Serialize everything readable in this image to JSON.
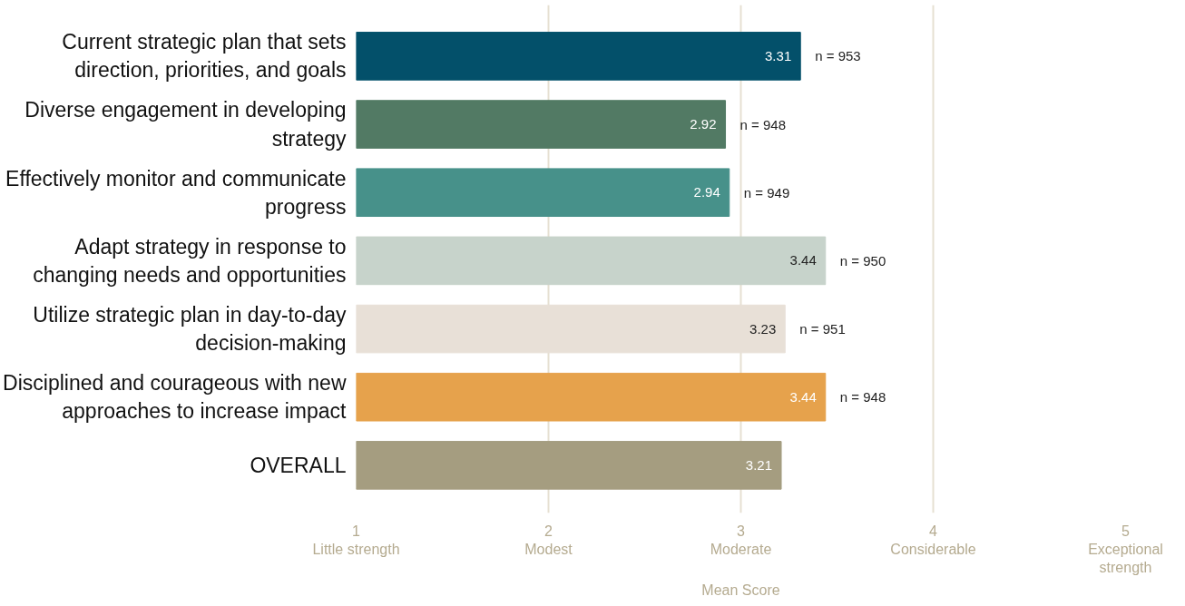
{
  "chart_data": {
    "type": "bar",
    "orientation": "horizontal",
    "xlabel": "Mean Score",
    "categories": [
      "Current strategic plan that sets direction, priorities, and goals",
      "Diverse engagement in developing strategy",
      "Effectively monitor and communicate progress",
      "Adapt strategy in response to changing needs and opportunities",
      "Utilize strategic plan in day-to-day decision-making",
      "Disciplined and courageous with new approaches to increase impact",
      "OVERALL"
    ],
    "values": [
      3.31,
      2.92,
      2.94,
      3.44,
      3.23,
      3.44,
      3.21
    ],
    "colors": [
      "#03506a",
      "#527a64",
      "#47918a",
      "#c7d3cb",
      "#e8e0d7",
      "#e6a24c",
      "#a59d80"
    ],
    "data_labels": true,
    "xlim": [
      1,
      5
    ],
    "xticks": [
      {
        "value": 1,
        "label": "1\nLittle strength"
      },
      {
        "value": 2,
        "label": "2\nModest"
      },
      {
        "value": 3,
        "label": "3\nModerate"
      },
      {
        "value": 4,
        "label": "4\nConsiderable"
      },
      {
        "value": 5,
        "label": "5\nExceptional\nstrength"
      }
    ],
    "grid": "x",
    "annotations": [
      {
        "text": "n = 953",
        "x": 3.31,
        "y": "Current strategic plan that sets direction, priorities, and goals"
      },
      {
        "text": "n = 948",
        "x": 2.92,
        "y": "Diverse engagement in developing strategy"
      },
      {
        "text": "n = 949",
        "x": 2.94,
        "y": "Effectively monitor and communicate progress"
      },
      {
        "text": "n = 950",
        "x": 3.44,
        "y": "Adapt strategy in response to changing needs and opportunities"
      },
      {
        "text": "n = 951",
        "x": 3.23,
        "y": "Utilize strategic plan in day-to-day decision-making"
      },
      {
        "text": "n = 948",
        "x": 3.44,
        "y": "Disciplined and courageous with new approaches to increase impact"
      }
    ]
  }
}
